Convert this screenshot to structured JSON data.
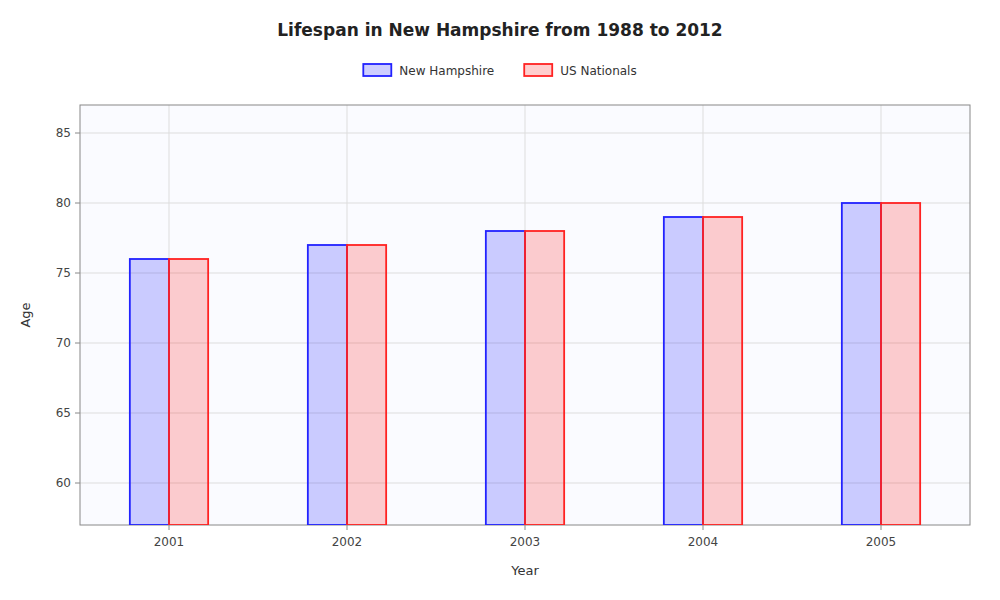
{
  "chart_data": {
    "type": "bar",
    "title": "Lifespan in New Hampshire from 1988 to 2012",
    "x_label": "Year",
    "y_label": "Age",
    "categories": [
      "2001",
      "2002",
      "2003",
      "2004",
      "2005"
    ],
    "series": [
      {
        "name": "New Hampshire",
        "color": "#2222ff",
        "values": [
          76,
          77,
          78,
          79,
          80
        ]
      },
      {
        "name": "US Nationals",
        "color": "#ff2222",
        "values": [
          76,
          77,
          78,
          79,
          80
        ]
      }
    ],
    "ylim": [
      57,
      87
    ],
    "yticks": [
      60,
      65,
      70,
      75,
      80,
      85
    ],
    "grid": true,
    "legend": "top"
  }
}
